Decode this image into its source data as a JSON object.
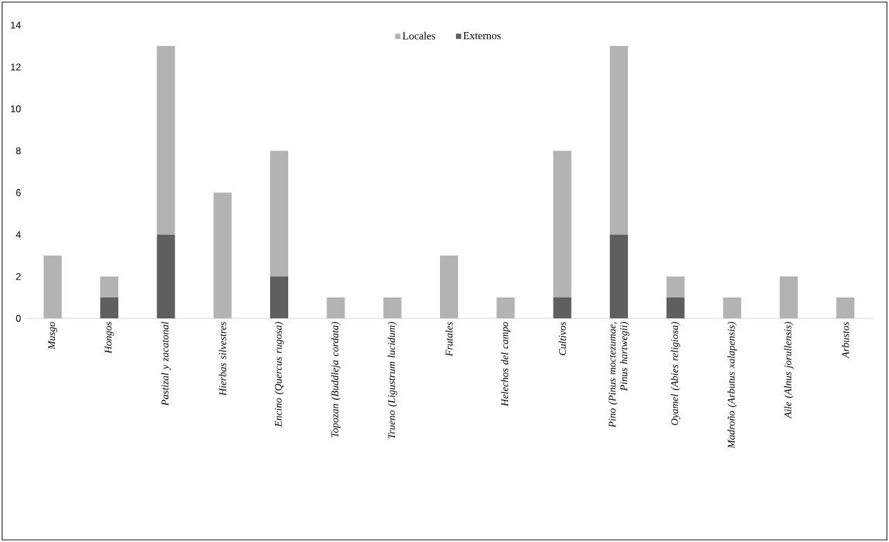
{
  "chart_data": {
    "type": "bar",
    "stacked": true,
    "categories": [
      "*Musgo*",
      "*Hongos*",
      "*Pastizal y zacatonal*",
      "*Hierbas silvestres*",
      "*Encino (Quercus rugosa)*",
      "*Topozan (Buddleja cordata)*",
      "*Trueno (Ligustrum lucidum)*",
      "*Frutales*",
      "*Helechos del campo*",
      "*Cultivos*",
      "*Pino (Pinus moctezumae, Pinus hartwegii)*",
      "*Oyamel (Abies religiosa)*",
      "*Madroño (Arbutus xalapensis)*",
      "*Aile (Alnus jorullensis)*",
      "*Arbustos*"
    ],
    "series": [
      {
        "name": "Externos",
        "color": "#5f5f5f",
        "values": [
          0,
          1,
          4,
          0,
          2,
          0,
          0,
          0,
          0,
          1,
          4,
          1,
          0,
          0,
          0
        ]
      },
      {
        "name": "Locales",
        "color": "#b3b3b3",
        "values": [
          3,
          1,
          9,
          6,
          6,
          1,
          1,
          3,
          1,
          7,
          9,
          1,
          1,
          2,
          1
        ]
      }
    ],
    "ylim": [
      0,
      14
    ],
    "yticks": [
      0,
      2,
      4,
      6,
      8,
      10,
      12,
      14
    ],
    "legend": "top"
  }
}
